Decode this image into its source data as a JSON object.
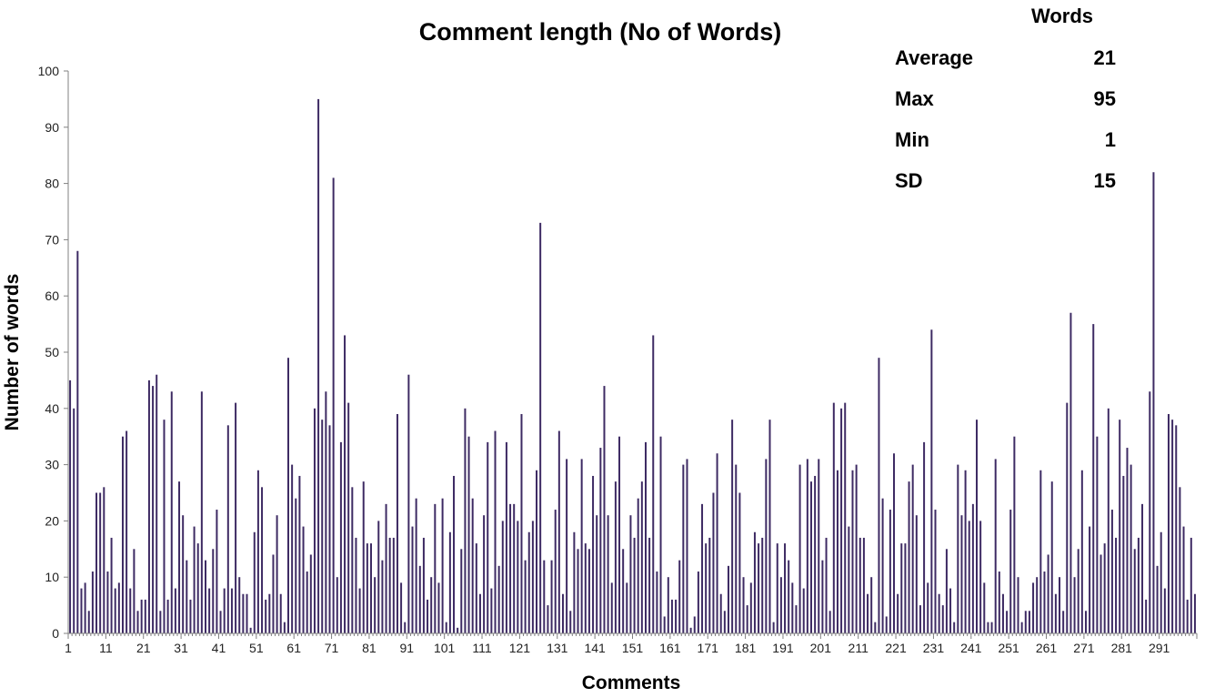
{
  "chart_data": {
    "type": "bar",
    "title": "Comment length (No of Words)",
    "xlabel": "Comments",
    "ylabel": "Number of words",
    "ylim": [
      0,
      100
    ],
    "yticks": [
      0,
      10,
      20,
      30,
      40,
      50,
      60,
      70,
      80,
      90,
      100
    ],
    "xticks": [
      "1",
      "11",
      "21",
      "31",
      "41",
      "51",
      "61",
      "71",
      "81",
      "91",
      "101",
      "111",
      "121",
      "131",
      "141",
      "151",
      "161",
      "171",
      "181",
      "191",
      "201",
      "211",
      "221",
      "231",
      "241",
      "251",
      "261",
      "271",
      "281",
      "291"
    ],
    "bar_color": "#3d2a63",
    "grid": false,
    "values": [
      45,
      40,
      68,
      8,
      9,
      4,
      11,
      25,
      25,
      26,
      11,
      17,
      8,
      9,
      35,
      36,
      8,
      15,
      4,
      6,
      6,
      45,
      44,
      46,
      4,
      38,
      6,
      43,
      8,
      27,
      21,
      13,
      6,
      19,
      16,
      43,
      13,
      8,
      15,
      22,
      4,
      8,
      37,
      8,
      41,
      10,
      7,
      7,
      1,
      18,
      29,
      26,
      6,
      7,
      14,
      21,
      7,
      2,
      49,
      30,
      24,
      28,
      19,
      11,
      14,
      40,
      95,
      38,
      43,
      37,
      81,
      10,
      34,
      53,
      41,
      26,
      17,
      8,
      27,
      16,
      16,
      10,
      20,
      13,
      23,
      17,
      17,
      39,
      9,
      2,
      46,
      19,
      24,
      12,
      17,
      6,
      10,
      23,
      9,
      24,
      2,
      18,
      28,
      1,
      15,
      40,
      35,
      24,
      16,
      7,
      21,
      34,
      8,
      36,
      12,
      20,
      34,
      23,
      23,
      20,
      39,
      13,
      18,
      20,
      29,
      73,
      13,
      5,
      13,
      22,
      36,
      7,
      31,
      4,
      18,
      15,
      31,
      16,
      15,
      28,
      21,
      33,
      44,
      21,
      9,
      27,
      35,
      15,
      9,
      21,
      17,
      24,
      27,
      34,
      17,
      53,
      11,
      35,
      3,
      10,
      6,
      6,
      13,
      30,
      31,
      1,
      3,
      11,
      23,
      16,
      17,
      25,
      32,
      7,
      4,
      12,
      38,
      30,
      25,
      10,
      5,
      9,
      18,
      16,
      17,
      31,
      38,
      2,
      16,
      10,
      16,
      13,
      9,
      5,
      30,
      8,
      31,
      27,
      28,
      31,
      13,
      17,
      4,
      41,
      29,
      40,
      41,
      19,
      29,
      30,
      17,
      17,
      7,
      10,
      2,
      49,
      24,
      3,
      22,
      32,
      7,
      16,
      16,
      27,
      30,
      21,
      5,
      34,
      9,
      54,
      22,
      7,
      5,
      15,
      8,
      2,
      30,
      21,
      29,
      20,
      23,
      38,
      20,
      9,
      2,
      2,
      31,
      11,
      7,
      4,
      22,
      35,
      10,
      2,
      4,
      4,
      9,
      10,
      29,
      11,
      14,
      27,
      7,
      10,
      4,
      41,
      57,
      10,
      15,
      29,
      4,
      19,
      55,
      35,
      14,
      16,
      40,
      22,
      17,
      38,
      28,
      33,
      30,
      15,
      17,
      23,
      6,
      43,
      82,
      12,
      18,
      8,
      39,
      38,
      37,
      26,
      19,
      6,
      17,
      7
    ]
  },
  "stats": {
    "header": "Words",
    "rows": [
      {
        "label": "Average",
        "value": "21"
      },
      {
        "label": "Max",
        "value": "95"
      },
      {
        "label": "Min",
        "value": "1"
      },
      {
        "label": "SD",
        "value": "15"
      }
    ]
  }
}
